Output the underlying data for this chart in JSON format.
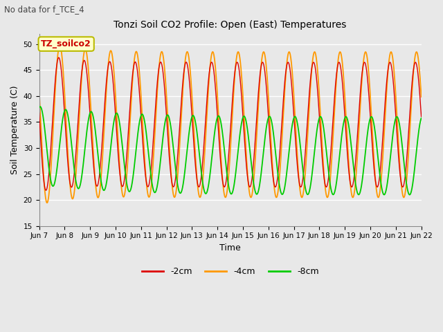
{
  "title": "Tonzi Soil CO2 Profile: Open (East) Temperatures",
  "subtitle": "No data for f_TCE_4",
  "xlabel": "Time",
  "ylabel": "Soil Temperature (C)",
  "ylim": [
    15,
    52
  ],
  "yticks": [
    15,
    20,
    25,
    30,
    35,
    40,
    45,
    50
  ],
  "num_days": 15,
  "period_hours": 24,
  "colors": {
    "neg2cm": "#dd0000",
    "neg4cm": "#ff9900",
    "neg8cm": "#00cc00"
  },
  "legend_label_2cm": "-2cm",
  "legend_label_4cm": "-4cm",
  "legend_label_8cm": "-8cm",
  "annotation_box": "TZ_soilco2",
  "annotation_box_facecolor": "#ffffcc",
  "annotation_box_edgecolor": "#bbbb00",
  "bg_color": "#e8e8e8",
  "grid_color": "#ffffff",
  "x_tick_labels": [
    "Jun 7",
    "Jun 8",
    "Jun 9",
    "Jun 10",
    "Jun 11",
    "Jun 12",
    "Jun 13",
    "Jun 14",
    "Jun 15",
    "Jun 16",
    "Jun 17",
    "Jun 18",
    "Jun 19",
    "Jun 20",
    "Jun 21",
    "Jun 22"
  ]
}
